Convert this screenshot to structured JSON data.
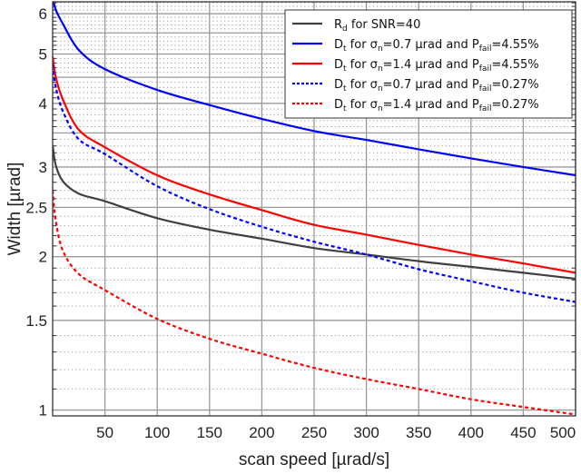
{
  "chart_data": {
    "type": "line",
    "title": "",
    "xlabel": "scan speed [µrad/s]",
    "ylabel": "Width [µrad]",
    "xlim": [
      0,
      500
    ],
    "ylim": [
      0.974,
      6.33
    ],
    "yscale": "log",
    "grid": true,
    "legend_position": "top-right",
    "x_ticks": [
      50,
      100,
      150,
      200,
      250,
      300,
      350,
      400,
      450,
      500
    ],
    "y_ticks": [
      1,
      1.5,
      2,
      2.5,
      3,
      4,
      5,
      6
    ],
    "y_tick_labels": [
      "1",
      "1.5",
      "2",
      "2.5",
      "3",
      "4",
      "5",
      "6"
    ],
    "x": [
      0,
      3,
      10,
      25,
      50,
      100,
      150,
      200,
      250,
      300,
      350,
      400,
      450,
      500
    ],
    "series": [
      {
        "name": "R_d for SNR=40",
        "color": "#404040",
        "dash": false,
        "legend": [
          {
            "t": "R"
          },
          {
            "t": "d",
            "sub": true
          },
          {
            "t": " for SNR=40"
          }
        ],
        "values": [
          3.31,
          3.02,
          2.81,
          2.66,
          2.57,
          2.38,
          2.26,
          2.17,
          2.08,
          2.02,
          1.96,
          1.91,
          1.86,
          1.81
        ]
      },
      {
        "name": "D_t for σn=0.7 µrad and Pfail=4.55%",
        "color": "#0000ff",
        "dash": false,
        "legend": [
          {
            "t": "D"
          },
          {
            "t": "t",
            "sub": true
          },
          {
            "t": " for σ"
          },
          {
            "t": "n",
            "sub": true
          },
          {
            "t": "=0.7 µrad and P"
          },
          {
            "t": "fail",
            "sub": true
          },
          {
            "t": "=4.55%"
          }
        ],
        "values": [
          6.45,
          6.1,
          5.72,
          5.09,
          4.67,
          4.25,
          3.97,
          3.73,
          3.53,
          3.39,
          3.25,
          3.12,
          3.0,
          2.89
        ]
      },
      {
        "name": "D_t for σn=1.4 µrad and Pfail=4.55%",
        "color": "#ff0000",
        "dash": false,
        "legend": [
          {
            "t": "D"
          },
          {
            "t": "t",
            "sub": true
          },
          {
            "t": " for σ"
          },
          {
            "t": "n",
            "sub": true
          },
          {
            "t": "=1.4 µrad and P"
          },
          {
            "t": "fail",
            "sub": true
          },
          {
            "t": "=4.55%"
          }
        ],
        "values": [
          4.94,
          4.5,
          4.06,
          3.55,
          3.28,
          2.89,
          2.65,
          2.47,
          2.31,
          2.21,
          2.11,
          2.02,
          1.94,
          1.86
        ]
      },
      {
        "name": "D_t for σn=0.7 µrad and Pfail=0.27%",
        "color": "#0000ff",
        "dash": true,
        "legend": [
          {
            "t": "D"
          },
          {
            "t": "t",
            "sub": true
          },
          {
            "t": " for σ"
          },
          {
            "t": "n",
            "sub": true
          },
          {
            "t": "=0.7 µrad and P"
          },
          {
            "t": "fail",
            "sub": true
          },
          {
            "t": "=0.27%"
          }
        ],
        "values": [
          4.76,
          4.3,
          3.85,
          3.4,
          3.18,
          2.75,
          2.48,
          2.29,
          2.14,
          2.02,
          1.89,
          1.79,
          1.7,
          1.63
        ]
      },
      {
        "name": "D_t for σn=1.4 µrad and Pfail=0.27%",
        "color": "#ff0000",
        "dash": true,
        "legend": [
          {
            "t": "D"
          },
          {
            "t": "t",
            "sub": true
          },
          {
            "t": " for σ"
          },
          {
            "t": "n",
            "sub": true
          },
          {
            "t": "=1.4 µrad and P"
          },
          {
            "t": "fail",
            "sub": true
          },
          {
            "t": "=0.27%"
          }
        ],
        "values": [
          2.7,
          2.35,
          2.05,
          1.85,
          1.72,
          1.51,
          1.38,
          1.29,
          1.21,
          1.15,
          1.1,
          1.05,
          1.014,
          0.98
        ]
      }
    ]
  }
}
